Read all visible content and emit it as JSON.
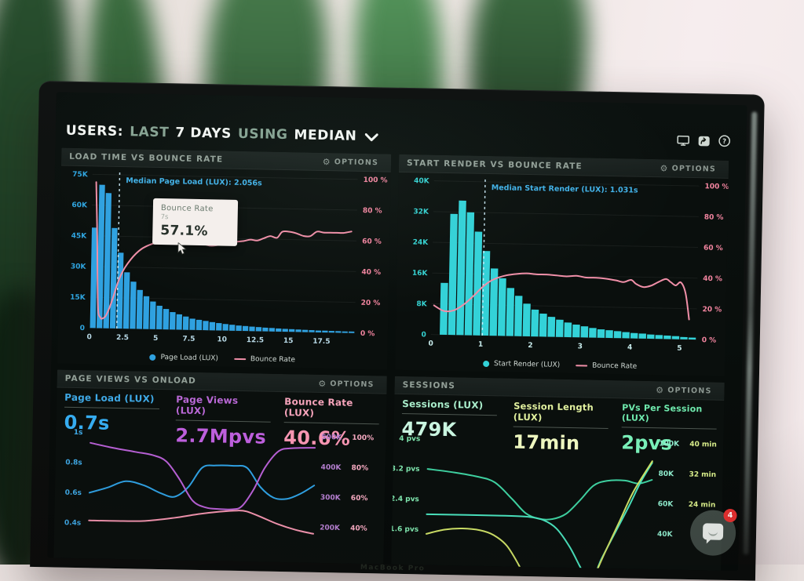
{
  "titlebar": {
    "part1": "USERS:",
    "part2": "LAST",
    "part3": "7 DAYS",
    "part4": "USING",
    "part5": "MEDIAN"
  },
  "icons": {
    "gear": "⚙"
  },
  "bezel": {
    "label": "MacBook Pro"
  },
  "chat": {
    "badge": "4"
  },
  "panels": {
    "load_time": {
      "title": "LOAD TIME VS BOUNCE RATE",
      "options": "OPTIONS",
      "tooltip": {
        "title": "Bounce Rate",
        "sub": "7s",
        "value": "57.1%"
      },
      "legend": [
        {
          "label": "Page Load (LUX)"
        },
        {
          "label": "Bounce Rate"
        }
      ]
    },
    "start_render": {
      "title": "START RENDER VS BOUNCE RATE",
      "options": "OPTIONS",
      "legend": [
        {
          "label": "Start Render (LUX)"
        },
        {
          "label": "Bounce Rate"
        }
      ]
    },
    "page_views": {
      "title": "PAGE VIEWS VS ONLOAD",
      "options": "OPTIONS",
      "metrics": [
        {
          "label": "Page Load (LUX)",
          "value": "0.7s",
          "label_color": "#3fa9e6",
          "value_color": "#36acf0"
        },
        {
          "label": "Page Views (LUX)",
          "value": "2.7Mpvs",
          "label_color": "#b968d6",
          "value_color": "#bd5fdc"
        },
        {
          "label": "Bounce Rate (LUX)",
          "value": "40.6%",
          "label_color": "#f5a3ba",
          "value_color": "#f795b2"
        }
      ]
    },
    "sessions": {
      "title": "SESSIONS",
      "options": "OPTIONS",
      "metrics": [
        {
          "label": "Sessions (LUX)",
          "value": "479K",
          "label_color": "#a9edcb",
          "value_color": "#c9f5e0"
        },
        {
          "label": "Session Length (LUX)",
          "value": "17min",
          "label_color": "#e1f09e",
          "value_color": "#eef7bf"
        },
        {
          "label": "PVs Per Session (LUX)",
          "value": "2pvs",
          "label_color": "#6fe9ad",
          "value_color": "#79efb8"
        }
      ]
    }
  },
  "chart_data": [
    {
      "type": "bar+line",
      "title": "LOAD TIME VS BOUNCE RATE",
      "y_max": 75,
      "x_max": 20,
      "bar_width_s": 0.5,
      "left_labels": [
        "75K",
        "60K",
        "45K",
        "30K",
        "15K",
        "0"
      ],
      "right_labels": [
        "100 %",
        "80 %",
        "60 %",
        "40 %",
        "20 %",
        "0 %"
      ],
      "x_ticks": [
        {
          "v": 0,
          "t": "0"
        },
        {
          "v": 2.5,
          "t": "2.5"
        },
        {
          "v": 5,
          "t": "5"
        },
        {
          "v": 7.5,
          "t": "7.5"
        },
        {
          "v": 10,
          "t": "10"
        },
        {
          "v": 12.5,
          "t": "12.5"
        },
        {
          "v": 15,
          "t": "15"
        },
        {
          "v": 17.5,
          "t": "17.5"
        }
      ],
      "bars": [
        49,
        70,
        66,
        49,
        37,
        27.5,
        23,
        19,
        16,
        13.5,
        11.5,
        10,
        8.5,
        7.5,
        6.5,
        5.5,
        5,
        4.5,
        4,
        3.6,
        3.2,
        2.9,
        2.6,
        2.4,
        2.2,
        2,
        1.8,
        1.7,
        1.5,
        1.4,
        1.3,
        1.2,
        1.1,
        1,
        0.9,
        0.9,
        0.8,
        0.8,
        0.7,
        0.7
      ],
      "line": [
        [
          0.3,
          95
        ],
        [
          0.45,
          60
        ],
        [
          0.6,
          15
        ],
        [
          0.8,
          7
        ],
        [
          1.0,
          6.5
        ],
        [
          1.2,
          8
        ],
        [
          1.5,
          14
        ],
        [
          1.8,
          22
        ],
        [
          2.0,
          28
        ],
        [
          2.3,
          35
        ],
        [
          2.6,
          40
        ],
        [
          3.0,
          45
        ],
        [
          3.4,
          49
        ],
        [
          3.8,
          52
        ],
        [
          4.2,
          54
        ],
        [
          4.6,
          55.5
        ],
        [
          5.0,
          56.5
        ],
        [
          5.5,
          57
        ],
        [
          6.0,
          57.5
        ],
        [
          6.5,
          57
        ],
        [
          7.0,
          57.1
        ],
        [
          7.5,
          57.5
        ],
        [
          8.0,
          57
        ],
        [
          8.5,
          56
        ],
        [
          9.0,
          55
        ],
        [
          9.5,
          55.5
        ],
        [
          10.0,
          56.5
        ],
        [
          10.5,
          57.5
        ],
        [
          11.0,
          58
        ],
        [
          11.5,
          58.5
        ],
        [
          12.0,
          59.5
        ],
        [
          12.5,
          59
        ],
        [
          13.0,
          60.5
        ],
        [
          13.5,
          62
        ],
        [
          14.0,
          61
        ],
        [
          14.4,
          65
        ],
        [
          15.0,
          65
        ],
        [
          15.5,
          64
        ],
        [
          16.0,
          62.5
        ],
        [
          16.5,
          62.5
        ],
        [
          17.0,
          65.5
        ],
        [
          17.5,
          65
        ],
        [
          18.0,
          65
        ],
        [
          18.5,
          65
        ],
        [
          19.0,
          65
        ],
        [
          19.6,
          66
        ]
      ],
      "median": {
        "x": 2.056,
        "label": "Median Page Load (LUX): 2.056s"
      },
      "bar_color": "#2fa1e0",
      "line_color": "#f08fa8",
      "left_color": "#2fa5e0",
      "right_color": "#f2849f",
      "xtick_color": "#b8d9e6",
      "median_color": "#41b1e8",
      "median_line_color": "#cfeefc"
    },
    {
      "type": "bar+line",
      "title": "START RENDER VS BOUNCE RATE",
      "y_max": 40,
      "x_max": 5.333,
      "bar_width_s": 0.167,
      "left_labels": [
        "40K",
        "32K",
        "24K",
        "16K",
        "8K",
        "0"
      ],
      "right_labels": [
        "100 %",
        "80 %",
        "60 %",
        "40 %",
        "20 %",
        "0 %"
      ],
      "x_ticks": [
        {
          "v": 0,
          "t": "0"
        },
        {
          "v": 1,
          "t": "1"
        },
        {
          "v": 2,
          "t": "2"
        },
        {
          "v": 3,
          "t": "3"
        },
        {
          "v": 4,
          "t": "4"
        },
        {
          "v": 5,
          "t": "5"
        }
      ],
      "bars": [
        0,
        13.5,
        31.5,
        35,
        32,
        27,
        22,
        17.5,
        15,
        12.5,
        10.5,
        8.5,
        7,
        6,
        5.2,
        4.5,
        3.8,
        3.3,
        2.9,
        2.5,
        2.2,
        2,
        1.8,
        1.6,
        1.4,
        1.3,
        1.1,
        1,
        0.9,
        0.8,
        0.6,
        0.5
      ],
      "line": [
        [
          0.05,
          19
        ],
        [
          0.25,
          15.5
        ],
        [
          0.45,
          16
        ],
        [
          0.65,
          20
        ],
        [
          0.85,
          26
        ],
        [
          1.0,
          31
        ],
        [
          1.15,
          35
        ],
        [
          1.3,
          37.5
        ],
        [
          1.5,
          39.5
        ],
        [
          1.7,
          40.5
        ],
        [
          1.9,
          41
        ],
        [
          2.1,
          40.5
        ],
        [
          2.3,
          40.5
        ],
        [
          2.5,
          40
        ],
        [
          2.7,
          39.5
        ],
        [
          2.9,
          40
        ],
        [
          3.1,
          39
        ],
        [
          3.3,
          39
        ],
        [
          3.5,
          38.5
        ],
        [
          3.7,
          37.5
        ],
        [
          3.85,
          36.5
        ],
        [
          4.0,
          38
        ],
        [
          4.1,
          35.5
        ],
        [
          4.25,
          33.5
        ],
        [
          4.4,
          34.5
        ],
        [
          4.55,
          37
        ],
        [
          4.7,
          39
        ],
        [
          4.8,
          37
        ],
        [
          4.9,
          35
        ],
        [
          5.0,
          37
        ],
        [
          5.1,
          30
        ],
        [
          5.18,
          13
        ]
      ],
      "median": {
        "x": 1.031,
        "label": "Median Start Render (LUX): 1.031s"
      },
      "bar_color": "#33d2d8",
      "line_color": "#f08fa8",
      "left_color": "#35d2d2",
      "right_color": "#f2849f",
      "xtick_color": "#c8ecec",
      "median_color": "#41b1e8",
      "median_line_color": "#cfeefc"
    },
    {
      "type": "line",
      "title": "PAGE VIEWS VS ONLOAD",
      "left_labels": [
        "1s",
        "0.8s",
        "0.6s",
        "0.4s"
      ],
      "left_color": "#3fa9e6",
      "right_cols": [
        {
          "labels": [
            "500K",
            "400K",
            "300K",
            "200K"
          ],
          "color": "#b57fd0"
        },
        {
          "labels": [
            "100%",
            "80%",
            "60%",
            "40%"
          ],
          "color": "#f5a9c0"
        }
      ],
      "series": [
        {
          "name": "Page Load (LUX)",
          "color": "#2f9fe0",
          "pts": [
            [
              0,
              2.0
            ],
            [
              0.08,
              1.82
            ],
            [
              0.16,
              1.6
            ],
            [
              0.24,
              1.72
            ],
            [
              0.32,
              1.98
            ],
            [
              0.38,
              2.08
            ],
            [
              0.44,
              1.75
            ],
            [
              0.5,
              1.1
            ],
            [
              0.56,
              1.02
            ],
            [
              0.64,
              1.02
            ],
            [
              0.7,
              1.08
            ],
            [
              0.76,
              1.7
            ],
            [
              0.82,
              2.05
            ],
            [
              0.88,
              2.08
            ],
            [
              0.94,
              1.9
            ],
            [
              1,
              1.62
            ]
          ]
        },
        {
          "name": "Page Views (LUX)",
          "color": "#b55fd2",
          "pts": [
            [
              0,
              0.35
            ],
            [
              0.1,
              0.5
            ],
            [
              0.2,
              0.62
            ],
            [
              0.28,
              0.72
            ],
            [
              0.34,
              0.92
            ],
            [
              0.4,
              1.5
            ],
            [
              0.46,
              2.2
            ],
            [
              0.52,
              2.42
            ],
            [
              0.58,
              2.46
            ],
            [
              0.64,
              2.46
            ],
            [
              0.68,
              2.35
            ],
            [
              0.73,
              1.8
            ],
            [
              0.78,
              1.05
            ],
            [
              0.84,
              0.5
            ],
            [
              0.9,
              0.4
            ],
            [
              1,
              0.37
            ]
          ]
        },
        {
          "name": "Bounce Rate (LUX)",
          "color": "#f093ad",
          "pts": [
            [
              0,
              2.92
            ],
            [
              0.12,
              2.92
            ],
            [
              0.25,
              2.9
            ],
            [
              0.38,
              2.78
            ],
            [
              0.48,
              2.65
            ],
            [
              0.58,
              2.55
            ],
            [
              0.66,
              2.5
            ],
            [
              0.7,
              2.52
            ],
            [
              0.76,
              2.68
            ],
            [
              0.84,
              2.92
            ],
            [
              0.92,
              3.1
            ],
            [
              1,
              3.22
            ]
          ]
        }
      ]
    },
    {
      "type": "line",
      "title": "SESSIONS",
      "left_labels": [
        "4 pvs",
        "3.2 pvs",
        "2.4 pvs",
        "1.6 pvs"
      ],
      "left_color": "#7fe6ae",
      "right_cols": [
        {
          "labels": [
            "100K",
            "80K",
            "60K",
            "40K"
          ],
          "color": "#8feccd"
        },
        {
          "labels": [
            "40 min",
            "32 min",
            "24 min",
            ""
          ],
          "color": "#d8ed8a"
        }
      ],
      "series": [
        {
          "name": "Sessions (LUX)",
          "color": "#3ecf9f",
          "pts": [
            [
              0,
              1.0
            ],
            [
              0.12,
              1.1
            ],
            [
              0.22,
              1.22
            ],
            [
              0.3,
              1.4
            ],
            [
              0.38,
              1.95
            ],
            [
              0.44,
              2.4
            ],
            [
              0.5,
              2.58
            ],
            [
              0.56,
              2.58
            ],
            [
              0.62,
              2.4
            ],
            [
              0.68,
              1.95
            ],
            [
              0.74,
              1.45
            ],
            [
              0.8,
              1.28
            ],
            [
              0.88,
              1.26
            ],
            [
              0.94,
              1.35
            ],
            [
              1,
              1.22
            ]
          ]
        },
        {
          "name": "PVs Per Session (LUX)",
          "color": "#49e0bb",
          "pts": [
            [
              0,
              2.5
            ],
            [
              0.35,
              2.5
            ],
            [
              0.45,
              2.52
            ],
            [
              0.52,
              2.62
            ],
            [
              0.58,
              2.9
            ],
            [
              0.64,
              3.5
            ],
            [
              0.7,
              4.3
            ],
            [
              0.74,
              4.6
            ],
            [
              0.78,
              3.9
            ],
            [
              0.84,
              3.0
            ],
            [
              0.9,
              2.1
            ],
            [
              0.95,
              1.3
            ],
            [
              1,
              0.65
            ]
          ]
        },
        {
          "name": "Session Length (LUX)",
          "color": "#ccdf66",
          "pts": [
            [
              0,
              3.15
            ],
            [
              0.08,
              3.0
            ],
            [
              0.16,
              2.95
            ],
            [
              0.24,
              3.0
            ],
            [
              0.3,
              3.15
            ],
            [
              0.36,
              3.5
            ],
            [
              0.42,
              4.2
            ],
            [
              0.46,
              4.8
            ],
            [
              0.68,
              5.2
            ],
            [
              0.74,
              4.6
            ],
            [
              0.8,
              3.6
            ],
            [
              0.86,
              2.6
            ],
            [
              0.92,
              1.6
            ],
            [
              1,
              0.6
            ]
          ]
        }
      ]
    }
  ]
}
